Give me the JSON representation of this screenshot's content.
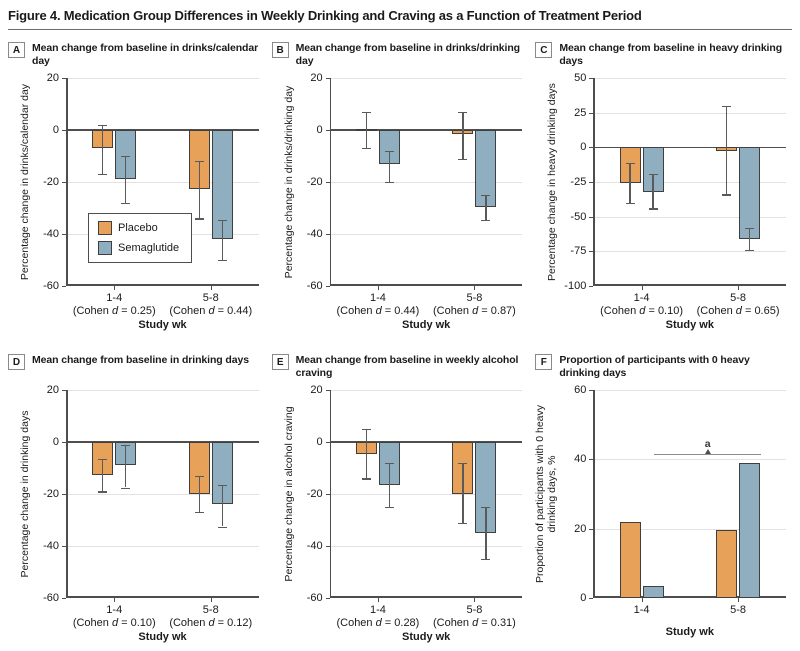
{
  "figure": {
    "title": "Figure 4. Medication Group Differences in Weekly Drinking and Craving as a Function of Treatment Period"
  },
  "legend": {
    "items": [
      {
        "label": "Placebo",
        "color": "#E8A158"
      },
      {
        "label": "Semaglutide",
        "color": "#8FAFC0"
      }
    ]
  },
  "labels": {
    "cohen_prefix": "(Cohen ",
    "cohen_symbol": "d",
    "cohen_eq": " = ",
    "cohen_close": ")"
  },
  "chart_data": [
    {
      "id": "A",
      "type": "bar",
      "title": "Mean change from baseline in drinks/calendar day",
      "ylabel": "Percentage change in drinks/calendar day",
      "ylabel_lines": 1,
      "ylim": [
        -60,
        20
      ],
      "yticks": [
        20,
        0,
        -20,
        -40,
        -60
      ],
      "categories": [
        "1-4",
        "5-8"
      ],
      "cohen_d": [
        "0.25",
        "0.44"
      ],
      "xlabel": "Study wk",
      "show_legend": true,
      "series": [
        {
          "name": "Placebo",
          "values": [
            -7,
            -22.5
          ],
          "err_hi": [
            2,
            -12
          ],
          "err_lo": [
            -17,
            -34
          ]
        },
        {
          "name": "Semaglutide",
          "values": [
            -19,
            -42
          ],
          "err_hi": [
            -10,
            -34.5
          ],
          "err_lo": [
            -28,
            -50
          ]
        }
      ]
    },
    {
      "id": "B",
      "type": "bar",
      "title": "Mean change from baseline in drinks/drinking day",
      "ylabel": "Percentage change in drinks/drinking day",
      "ylabel_lines": 1,
      "ylim": [
        -60,
        20
      ],
      "yticks": [
        20,
        0,
        -20,
        -40,
        -60
      ],
      "categories": [
        "1-4",
        "5-8"
      ],
      "cohen_d": [
        "0.44",
        "0.87"
      ],
      "xlabel": "Study wk",
      "series": [
        {
          "name": "Placebo",
          "values": [
            0.5,
            -1.5
          ],
          "err_hi": [
            7,
            7
          ],
          "err_lo": [
            -7,
            -11
          ]
        },
        {
          "name": "Semaglutide",
          "values": [
            -13,
            -29.5
          ],
          "err_hi": [
            -8,
            -25
          ],
          "err_lo": [
            -20,
            -34.5
          ]
        }
      ]
    },
    {
      "id": "C",
      "type": "bar",
      "title": "Mean change from baseline in heavy drinking days",
      "ylabel": "Percentage change in heavy drinking days",
      "ylabel_lines": 1,
      "ylim": [
        -100,
        50
      ],
      "yticks": [
        50,
        25,
        0,
        -25,
        -50,
        -75,
        -100
      ],
      "categories": [
        "1-4",
        "5-8"
      ],
      "cohen_d": [
        "0.10",
        "0.65"
      ],
      "xlabel": "Study wk",
      "series": [
        {
          "name": "Placebo",
          "values": [
            -26,
            -2.5
          ],
          "err_hi": [
            -11,
            30
          ],
          "err_lo": [
            -40,
            -34
          ]
        },
        {
          "name": "Semaglutide",
          "values": [
            -32,
            -66
          ],
          "err_hi": [
            -19,
            -58
          ],
          "err_lo": [
            -44,
            -74
          ]
        }
      ]
    },
    {
      "id": "D",
      "type": "bar",
      "title": "Mean change from baseline in drinking days",
      "ylabel": "Percentage change in drinking days",
      "ylabel_lines": 1,
      "ylim": [
        -60,
        20
      ],
      "yticks": [
        20,
        0,
        -20,
        -40,
        -60
      ],
      "categories": [
        "1-4",
        "5-8"
      ],
      "cohen_d": [
        "0.10",
        "0.12"
      ],
      "xlabel": "Study wk",
      "series": [
        {
          "name": "Placebo",
          "values": [
            -12.5,
            -20
          ],
          "err_hi": [
            -6.5,
            -13
          ],
          "err_lo": [
            -19,
            -27
          ]
        },
        {
          "name": "Semaglutide",
          "values": [
            -9,
            -24
          ],
          "err_hi": [
            -1,
            -16.5
          ],
          "err_lo": [
            -17.5,
            -32.5
          ]
        }
      ]
    },
    {
      "id": "E",
      "type": "bar",
      "title": "Mean change from baseline in weekly alcohol craving",
      "ylabel": "Percentage change in alcohol craving",
      "ylabel_lines": 1,
      "ylim": [
        -60,
        20
      ],
      "yticks": [
        20,
        0,
        -20,
        -40,
        -60
      ],
      "categories": [
        "1-4",
        "5-8"
      ],
      "cohen_d": [
        "0.28",
        "0.31"
      ],
      "xlabel": "Study wk",
      "series": [
        {
          "name": "Placebo",
          "values": [
            -4.5,
            -20
          ],
          "err_hi": [
            5,
            -8
          ],
          "err_lo": [
            -14,
            -31
          ]
        },
        {
          "name": "Semaglutide",
          "values": [
            -16.5,
            -35
          ],
          "err_hi": [
            -8,
            -25
          ],
          "err_lo": [
            -25,
            -45
          ]
        }
      ]
    },
    {
      "id": "F",
      "type": "bar",
      "title": "Proportion of participants with 0 heavy drinking days",
      "ylabel": "Proportion of participants with 0 heavy drinking days, %",
      "ylabel_lines": 2,
      "ylim": [
        0,
        60
      ],
      "yticks": [
        60,
        40,
        20,
        0
      ],
      "categories": [
        "1-4",
        "5-8"
      ],
      "xlabel": "Study wk",
      "series": [
        {
          "name": "Placebo",
          "values": [
            22,
            19.5
          ]
        },
        {
          "name": "Semaglutide",
          "values": [
            3.5,
            39
          ]
        }
      ],
      "annotation": {
        "label": "a",
        "y": 41.5,
        "x1_pct": 31.5,
        "x2_pct": 87
      }
    }
  ]
}
